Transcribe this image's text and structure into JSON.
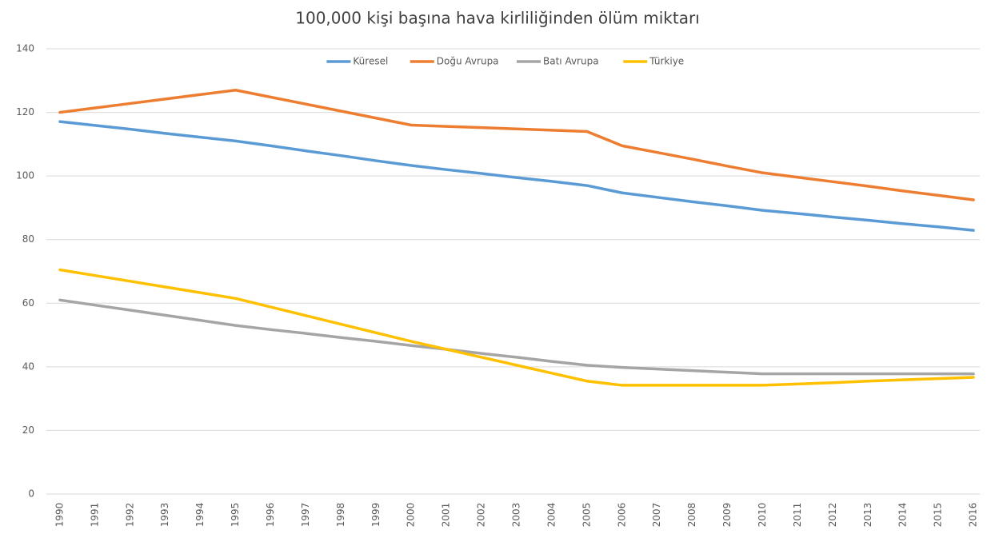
{
  "chart_data": {
    "type": "line",
    "title": "100,000 kişi başına hava kirliliğinden ölüm miktarı",
    "categories": [
      "1990",
      "1991",
      "1992",
      "1993",
      "1994",
      "1995",
      "1996",
      "1997",
      "1998",
      "1999",
      "2000",
      "2001",
      "2002",
      "2003",
      "2004",
      "2005",
      "2006",
      "2007",
      "2008",
      "2009",
      "2010",
      "2011",
      "2012",
      "2013",
      "2014",
      "2015",
      "2016"
    ],
    "series": [
      {
        "name": "Küresel",
        "color": "#5b9bd5",
        "values": [
          117.1,
          115.9,
          114.7,
          113.4,
          112.2,
          111.0,
          109.5,
          107.9,
          106.4,
          104.8,
          103.3,
          102.0,
          100.8,
          99.5,
          98.3,
          97.0,
          94.7,
          93.3,
          91.9,
          90.6,
          89.2,
          88.2,
          87.1,
          86.1,
          85.0,
          84.0,
          82.9
        ]
      },
      {
        "name": "Doğu Avrupa",
        "color": "#ed7d31",
        "values": [
          120,
          121.4,
          122.8,
          124.2,
          125.6,
          127,
          124.8,
          122.6,
          120.4,
          118.2,
          116,
          115.6,
          115.2,
          114.8,
          114.4,
          114,
          109.5,
          107.4,
          105.3,
          103.1,
          101,
          99.6,
          98.2,
          96.8,
          95.3,
          93.9,
          92.5
        ]
      },
      {
        "name": "Batı Avrupa",
        "color": "#a5a5a5",
        "values": [
          61,
          59.4,
          57.8,
          56.2,
          54.6,
          53,
          51.7,
          50.5,
          49.2,
          48.0,
          46.7,
          45.5,
          44.2,
          43.0,
          41.7,
          40.5,
          39.8,
          39.3,
          38.8,
          38.3,
          37.8,
          37.8,
          37.8,
          37.8,
          37.8,
          37.8,
          37.8
        ]
      },
      {
        "name": "Türkiye",
        "color": "#ffc000",
        "values": [
          70.5,
          68.7,
          66.9,
          65.1,
          63.3,
          61.5,
          58.8,
          56.1,
          53.4,
          50.7,
          48,
          45.5,
          43,
          40.5,
          38,
          35.5,
          34.2,
          34.2,
          34.2,
          34.2,
          34.2,
          34.6,
          35.0,
          35.5,
          35.9,
          36.3,
          36.7
        ]
      }
    ],
    "ylim": [
      0,
      140
    ],
    "yticks": [
      0,
      20,
      40,
      60,
      80,
      100,
      120,
      140
    ],
    "grid": true,
    "legend": "top"
  }
}
